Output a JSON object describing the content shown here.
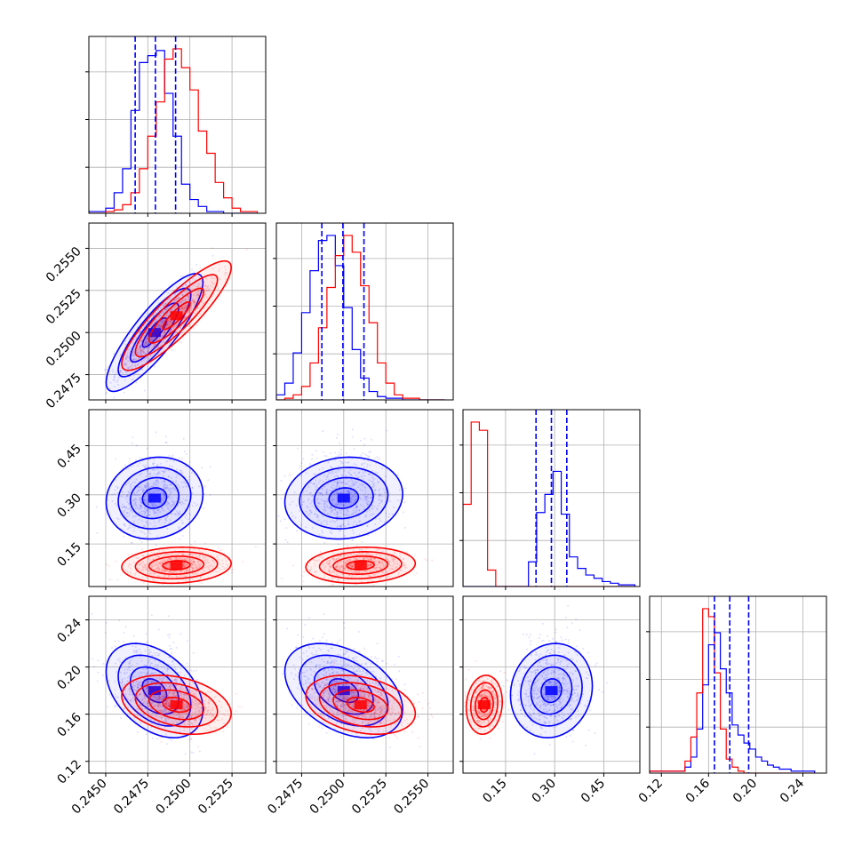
{
  "chart_data": {
    "type": "corner",
    "colors": {
      "series_a": "#0000ff",
      "series_b": "#ff0000"
    },
    "params": [
      {
        "range": [
          0.244,
          0.2545
        ],
        "ticks": [
          0.245,
          0.2475,
          0.25,
          0.2525
        ],
        "tick_labels": [
          "0.2450",
          "0.2475",
          "0.2500",
          "0.2525"
        ]
      },
      {
        "range": [
          0.246,
          0.2565
        ],
        "ticks": [
          0.2475,
          0.25,
          0.2525,
          0.255
        ],
        "tick_labels": [
          "0.2475",
          "0.2500",
          "0.2525",
          "0.2550"
        ]
      },
      {
        "range": [
          0.02,
          0.56
        ],
        "ticks": [
          0.15,
          0.3,
          0.45
        ],
        "tick_labels": [
          "0.15",
          "0.30",
          "0.45"
        ]
      },
      {
        "range": [
          0.11,
          0.26
        ],
        "ticks": [
          0.12,
          0.16,
          0.2,
          0.24
        ],
        "tick_labels": [
          "0.12",
          "0.16",
          "0.20",
          "0.24"
        ]
      }
    ],
    "series": [
      {
        "color": "#0000ff",
        "means": [
          0.2479,
          0.25,
          0.29,
          0.18
        ],
        "sds": [
          0.00115,
          0.0014,
          0.05,
          0.016
        ],
        "quantiles": [
          [
            0.24675,
            0.24795,
            0.24915
          ],
          [
            0.2487,
            0.24995,
            0.2512
          ],
          [
            0.243,
            0.29,
            0.337
          ],
          [
            0.165,
            0.178,
            0.194
          ]
        ]
      },
      {
        "color": "#ff0000",
        "means": [
          0.2492,
          0.251,
          0.085,
          0.168
        ],
        "sds": [
          0.0013,
          0.0013,
          0.022,
          0.01
        ],
        "quantiles": null
      }
    ],
    "histograms": [
      {
        "edges": [
          0.244,
          0.245,
          0.2455,
          0.246,
          0.2465,
          0.247,
          0.2475,
          0.248,
          0.2485,
          0.249,
          0.2495,
          0.25,
          0.2505,
          0.251,
          0.2515,
          0.252,
          0.2525,
          0.253,
          0.254
        ],
        "series_a": [
          1,
          3,
          12,
          26,
          60,
          88,
          92,
          95,
          70,
          45,
          17,
          8,
          4,
          1,
          1,
          0,
          0,
          0
        ],
        "series_b": [
          0,
          1,
          2,
          5,
          12,
          26,
          45,
          65,
          90,
          96,
          85,
          72,
          48,
          35,
          18,
          9,
          3,
          1
        ]
      },
      {
        "edges": [
          0.246,
          0.2465,
          0.247,
          0.2475,
          0.248,
          0.2485,
          0.249,
          0.2495,
          0.25,
          0.2505,
          0.251,
          0.2515,
          0.252,
          0.2525,
          0.253,
          0.2535,
          0.2545,
          0.256
        ],
        "series_a": [
          3,
          10,
          28,
          52,
          77,
          95,
          98,
          80,
          55,
          30,
          13,
          5,
          2,
          1,
          1,
          0,
          0
        ],
        "series_b": [
          0,
          1,
          3,
          8,
          22,
          43,
          67,
          86,
          98,
          88,
          68,
          46,
          22,
          10,
          3,
          1,
          0
        ]
      },
      {
        "edges": [
          0.02,
          0.045,
          0.07,
          0.095,
          0.12,
          0.145,
          0.17,
          0.195,
          0.22,
          0.245,
          0.27,
          0.295,
          0.32,
          0.345,
          0.37,
          0.395,
          0.42,
          0.445,
          0.47,
          0.495,
          0.52,
          0.545
        ],
        "series_a": [
          0,
          0,
          0,
          0,
          0,
          0,
          0,
          0,
          15,
          45,
          56,
          70,
          44,
          18,
          11,
          7,
          5,
          3,
          2,
          1,
          1
        ],
        "series_b": [
          50,
          100,
          95,
          10,
          0,
          0,
          0,
          0,
          0,
          0,
          0,
          0,
          0,
          0,
          0,
          0,
          0,
          0,
          0,
          0,
          0
        ]
      },
      {
        "edges": [
          0.11,
          0.14,
          0.145,
          0.15,
          0.155,
          0.16,
          0.165,
          0.17,
          0.175,
          0.18,
          0.185,
          0.19,
          0.195,
          0.2,
          0.205,
          0.21,
          0.215,
          0.22,
          0.23,
          0.24,
          0.25
        ],
        "series_a": [
          1,
          3,
          8,
          22,
          44,
          64,
          70,
          52,
          40,
          24,
          19,
          15,
          12,
          8,
          6,
          4,
          3,
          2,
          1,
          1
        ],
        "series_b": [
          1,
          6,
          18,
          40,
          82,
          78,
          50,
          22,
          7,
          3,
          1,
          0,
          0,
          0,
          0,
          0,
          0,
          0,
          0,
          0
        ]
      }
    ]
  }
}
